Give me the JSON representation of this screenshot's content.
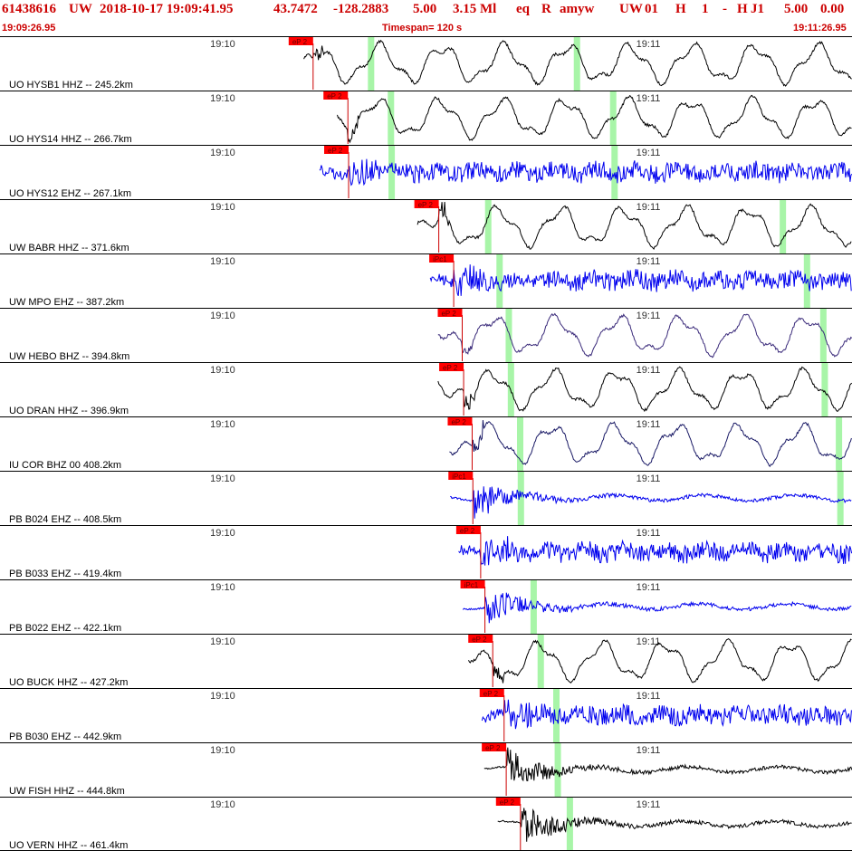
{
  "header": {
    "event_id": "61438616",
    "network": "UW",
    "origin_datetime": "2018-10-17 19:09:41.95",
    "latitude": "43.7472",
    "longitude": "-128.2883",
    "depth": "5.00",
    "magnitude": "3.15 Ml",
    "event_type": "eq",
    "review": "R",
    "analyst": "amyw",
    "info_net": "UW",
    "info_code": "01",
    "info_h1": "H",
    "info_n": "1",
    "info_dash": "-",
    "info_h2": "H",
    "info_j": "J1",
    "info_v1": "5.00",
    "info_v2": "0.00",
    "start_time": "19:09:26.95",
    "timespan": "Timespan= 120 s",
    "end_time": "19:11:26.95"
  },
  "colors": {
    "header_text": "#cc0000",
    "pick_box": "#ff0000",
    "pick_line": "#cc0000",
    "s_window": "#a8f5a8",
    "trace_black": "#000000",
    "trace_blue": "#0000ee",
    "trace_navy": "#1a1a66",
    "trace_purple": "#3a2a7a",
    "panel_border": "#000000"
  },
  "chart_data": {
    "type": "line",
    "title": "61438616 UW 2018-10-17 19:09:41.95",
    "x_unit": "seconds after 19:09:26.95",
    "xlim": [
      0,
      120
    ],
    "time_marks": [
      {
        "label": "19:10",
        "t": 33.05
      },
      {
        "label": "19:11",
        "t": 93.05
      }
    ],
    "traces": [
      {
        "label": "UO HYSB1 HHZ -- 245.2km",
        "pick": "eP 2",
        "pick_t": 44.1,
        "s_t": [
          52.2,
          81.2
        ],
        "start_t": 42.8,
        "color": "black",
        "style": "lp"
      },
      {
        "label": "UO HYS14 HHZ -- 266.7km",
        "pick": "eP 2",
        "pick_t": 49.0,
        "s_t": [
          55.0,
          86.3
        ],
        "start_t": 47.5,
        "color": "black",
        "style": "lp"
      },
      {
        "label": "UO HYS12 EHZ -- 267.1km",
        "pick": "eP 2",
        "pick_t": 49.1,
        "s_t": [
          55.1,
          86.5
        ],
        "start_t": 45.0,
        "color": "blue",
        "style": "hf"
      },
      {
        "label": "UW BABR HHZ -- 371.6km",
        "pick": "eP 2",
        "pick_t": 61.8,
        "s_t": [
          68.7,
          110.2
        ],
        "start_t": 58.8,
        "color": "black",
        "style": "lp"
      },
      {
        "label": "UW MPO EHZ -- 387.2km",
        "pick": "iPc1",
        "pick_t": 63.9,
        "s_t": [
          70.3,
          113.6
        ],
        "start_t": 60.6,
        "color": "blue",
        "style": "hf"
      },
      {
        "label": "UW HEBO BHZ -- 394.8km",
        "pick": "eP 2",
        "pick_t": 65.1,
        "s_t": [
          71.6,
          115.9
        ],
        "start_t": 61.7,
        "color": "purple",
        "style": "lp"
      },
      {
        "label": "UO DRAN HHZ -- 396.9km",
        "pick": "eP 2",
        "pick_t": 65.3,
        "s_t": [
          71.9,
          116.1
        ],
        "start_t": 61.7,
        "color": "black",
        "style": "lp"
      },
      {
        "label": "IU COR BHZ 00 408.2km",
        "pick": "eP 2",
        "pick_t": 66.5,
        "s_t": [
          73.2,
          118.1
        ],
        "start_t": 63.3,
        "color": "navy",
        "style": "lp"
      },
      {
        "label": "PB B024 EHZ -- 408.5km",
        "pick": "iPc1",
        "pick_t": 66.6,
        "s_t": [
          73.3,
          118.3
        ],
        "start_t": 63.4,
        "color": "blue",
        "style": "decay"
      },
      {
        "label": "PB B033 EHZ -- 419.4km",
        "pick": "eP 2",
        "pick_t": 67.7,
        "s_t": [],
        "start_t": 64.6,
        "color": "blue",
        "style": "hf"
      },
      {
        "label": "PB B022 EHZ -- 422.1km",
        "pick": "iPc1",
        "pick_t": 68.3,
        "s_t": [
          75.1
        ],
        "start_t": 65.2,
        "color": "blue",
        "style": "decay"
      },
      {
        "label": "UO BUCK HHZ -- 427.2km",
        "pick": "eP 2",
        "pick_t": 69.4,
        "s_t": [
          76.1
        ],
        "start_t": 66.0,
        "color": "black",
        "style": "lp"
      },
      {
        "label": "PB B030 EHZ -- 442.9km",
        "pick": "eP 2",
        "pick_t": 71.0,
        "s_t": [
          78.3
        ],
        "start_t": 67.9,
        "color": "blue",
        "style": "hf"
      },
      {
        "label": "UW FISH HHZ -- 444.8km",
        "pick": "eP 2",
        "pick_t": 71.3,
        "s_t": [
          78.5
        ],
        "start_t": 68.2,
        "color": "black",
        "style": "decay"
      },
      {
        "label": "UO VERN HHZ -- 461.4km",
        "pick": "eP 2",
        "pick_t": 73.3,
        "s_t": [
          80.2
        ],
        "start_t": 70.1,
        "color": "black",
        "style": "decay"
      }
    ]
  }
}
